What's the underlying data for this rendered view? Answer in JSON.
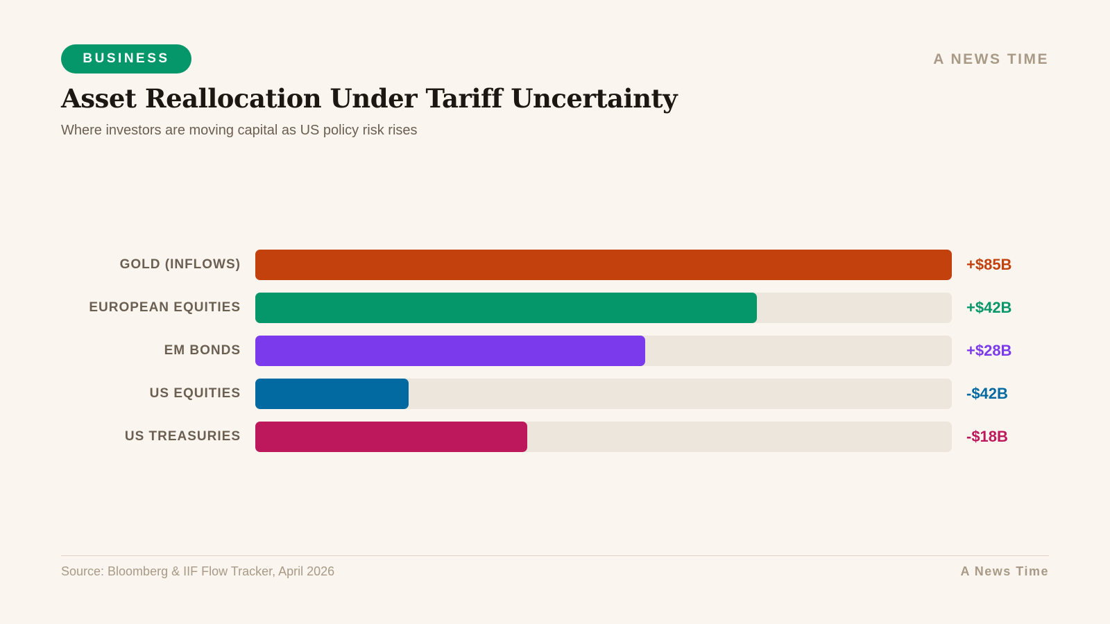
{
  "header": {
    "tag": "BUSINESS",
    "brand": "A NEWS TIME",
    "tag_color": "#05976a"
  },
  "chart_data": {
    "type": "bar",
    "orientation": "horizontal",
    "title": "Asset Reallocation Under Tariff Uncertainty",
    "subtitle": "Where investors are moving capital as US policy risk rises",
    "categories": [
      "GOLD (INFLOWS)",
      "EUROPEAN EQUITIES",
      "EM BONDS",
      "US EQUITIES",
      "US TREASURIES"
    ],
    "value_labels": [
      "+$85B",
      "+$42B",
      "+$28B",
      "-$42B",
      "-$18B"
    ],
    "values": [
      85,
      42,
      28,
      -42,
      -18
    ],
    "fill_percent": [
      100,
      72,
      56,
      22,
      39
    ],
    "colors": [
      "#c2410c",
      "#05976a",
      "#7c3aed",
      "#0369a1",
      "#be185d"
    ],
    "track_color": "#ede6dc",
    "grid": false,
    "legend": "none"
  },
  "footer": {
    "source": "Source: Bloomberg & IIF Flow Tracker, April 2026",
    "brand": "A News Time"
  }
}
